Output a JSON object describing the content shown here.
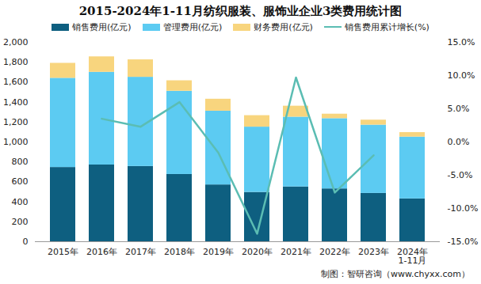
{
  "chart_data": {
    "type": "bar",
    "title": "2015-2024年1-11月纺织服装、服饰业企业3类费用统计图",
    "categories": [
      "2015年",
      "2016年",
      "2017年",
      "2018年",
      "2019年",
      "2020年",
      "2021年",
      "2022年",
      "2023年",
      "2024年\n1-11月"
    ],
    "stacked": true,
    "series": [
      {
        "name": "销售费用(亿元)",
        "type": "bar",
        "color": "#0e5f80",
        "values": [
          745,
          770,
          755,
          675,
          570,
          495,
          550,
          530,
          485,
          430
        ]
      },
      {
        "name": "管理费用(亿元)",
        "type": "bar",
        "color": "#5ccbf2",
        "values": [
          895,
          930,
          895,
          835,
          740,
          655,
          700,
          705,
          685,
          620
        ]
      },
      {
        "name": "财务费用(亿元)",
        "type": "bar",
        "color": "#f8d57e",
        "values": [
          150,
          155,
          175,
          105,
          120,
          115,
          110,
          45,
          50,
          45
        ]
      },
      {
        "name": "销售费用累计增长(%)",
        "type": "line",
        "axis": "y2",
        "color": "#5bbdb3",
        "values": [
          null,
          3.5,
          2.3,
          6.0,
          -1.6,
          -13.8,
          9.7,
          -7.6,
          -2.0,
          null
        ]
      }
    ],
    "ylim": [
      0,
      2000
    ],
    "yticks": [
      0,
      200,
      400,
      600,
      800,
      1000,
      1200,
      1400,
      1600,
      1800,
      2000
    ],
    "y2lim": [
      -15,
      15
    ],
    "y2ticks": [
      {
        "value": 15,
        "label": "15.0%"
      },
      {
        "value": 10,
        "label": "10.0%"
      },
      {
        "value": 5,
        "label": "5.0%"
      },
      {
        "value": 0,
        "label": "0.0%"
      },
      {
        "value": -5,
        "label": "-5.0%"
      },
      {
        "value": -10,
        "label": "-10.0%"
      },
      {
        "value": -15,
        "label": "-15.0%"
      }
    ],
    "legend": "top",
    "grid": false,
    "caption": "制图：智研咨询（www.chyxx.com）"
  }
}
